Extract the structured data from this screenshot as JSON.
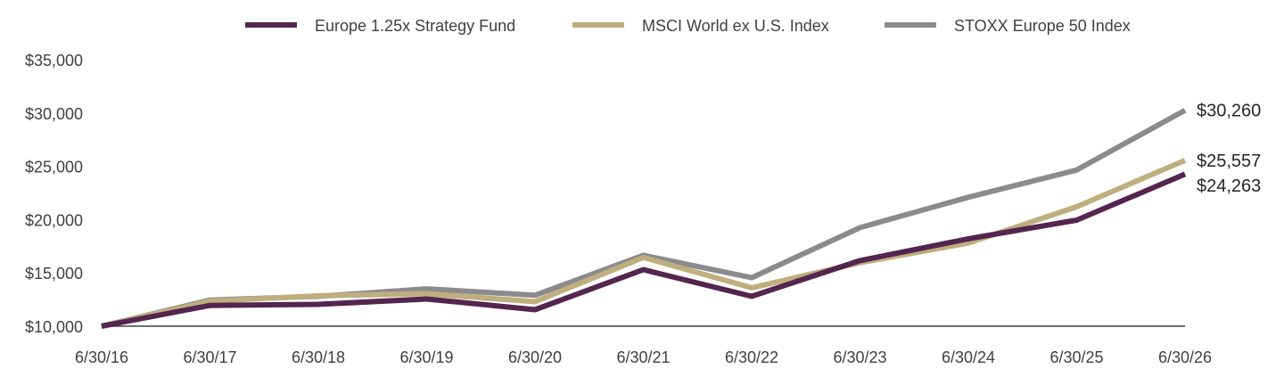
{
  "chart_data": {
    "type": "line",
    "x": [
      "6/30/16",
      "6/30/17",
      "6/30/18",
      "6/30/19",
      "6/30/20",
      "6/30/21",
      "6/30/22",
      "6/30/23",
      "6/30/24",
      "6/30/25",
      "6/30/26"
    ],
    "yticks": [
      "$10,000",
      "$15,000",
      "$20,000",
      "$25,000",
      "$30,000",
      "$35,000"
    ],
    "ylim": [
      10000,
      35000
    ],
    "grid": false,
    "legend_position": "top",
    "series": [
      {
        "name": "Europe 1.25x Strategy Fund",
        "color": "#54254f",
        "values": [
          10000,
          11950,
          12050,
          12550,
          11550,
          15300,
          12800,
          16150,
          18200,
          19950,
          24263
        ],
        "end_label": "$24,263"
      },
      {
        "name": "MSCI World ex U.S. Index",
        "color": "#bfae7e",
        "values": [
          10000,
          12350,
          12850,
          13050,
          12300,
          16450,
          13600,
          15950,
          17800,
          21200,
          25557
        ],
        "end_label": "$25,557"
      },
      {
        "name": "STOXX Europe 50 Index",
        "color": "#8b8a8d",
        "values": [
          10000,
          12450,
          12800,
          13500,
          12900,
          16650,
          14550,
          19250,
          22100,
          24650,
          30260
        ],
        "end_label": "$30,260"
      }
    ]
  }
}
